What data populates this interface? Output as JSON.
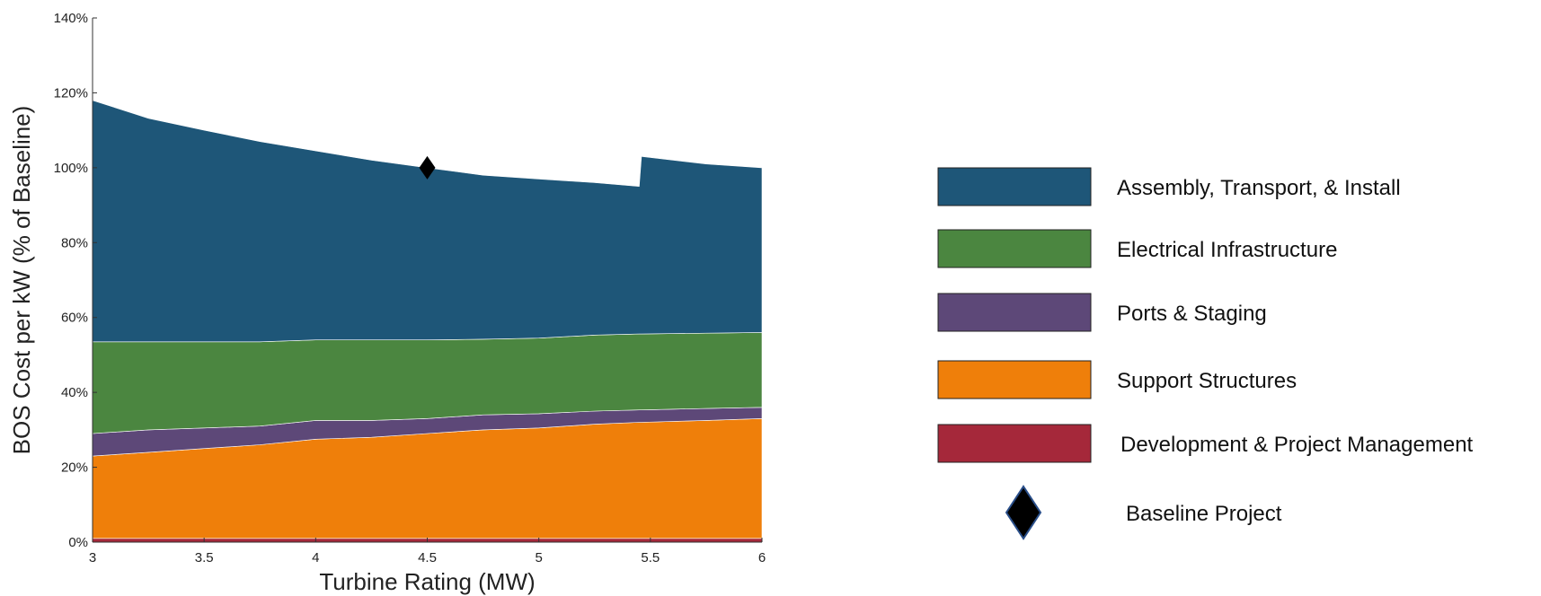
{
  "chart_data": {
    "type": "area",
    "stacked": true,
    "xlabel": "Turbine Rating (MW)",
    "ylabel": "BOS Cost per kW (% of Baseline)",
    "xlim": [
      3,
      6
    ],
    "ylim": [
      0,
      140
    ],
    "x_ticks": [
      "3",
      "3.5",
      "4",
      "4.5",
      "5",
      "5.5",
      "6"
    ],
    "y_ticks": [
      "0%",
      "20%",
      "40%",
      "60%",
      "80%",
      "100%",
      "120%",
      "140%"
    ],
    "x": [
      3,
      3.25,
      3.5,
      3.75,
      4,
      4.25,
      4.5,
      4.75,
      5,
      5.25,
      5.45,
      5.46,
      5.75,
      6
    ],
    "series": [
      {
        "name": "Development & Project Management",
        "color": "#a5283a",
        "values": [
          1,
          1,
          1,
          1,
          1,
          1,
          1,
          1,
          1,
          1,
          1,
          1,
          1,
          1
        ]
      },
      {
        "name": "Support Structures",
        "color": "#ef7f0a",
        "values": [
          22,
          23,
          24,
          25,
          26.5,
          27,
          28,
          29,
          29.5,
          30.5,
          31,
          31,
          31.5,
          32
        ]
      },
      {
        "name": "Ports & Staging",
        "color": "#5d4878",
        "values": [
          6,
          6,
          5.5,
          5,
          5,
          4.5,
          4,
          4,
          3.8,
          3.5,
          3.3,
          3.3,
          3.2,
          3
        ]
      },
      {
        "name": "Electrical Infrastructure",
        "color": "#4b8640",
        "values": [
          24.5,
          23.5,
          23,
          22.5,
          21.5,
          21.5,
          21,
          20.2,
          20.2,
          20.3,
          20.3,
          20.3,
          20.1,
          20
        ]
      },
      {
        "name": "Assembly, Transport, & Install",
        "color": "#1e5678",
        "values": [
          64.5,
          59.7,
          56.5,
          53.5,
          50.5,
          48,
          46,
          43.8,
          42.5,
          40.7,
          39.4,
          47.4,
          45.2,
          44
        ]
      }
    ],
    "markers": [
      {
        "name": "Baseline Project",
        "x": 4.5,
        "y": 100,
        "shape": "diamond",
        "color": "#000000"
      }
    ],
    "legend_position": "right",
    "grid": false
  }
}
